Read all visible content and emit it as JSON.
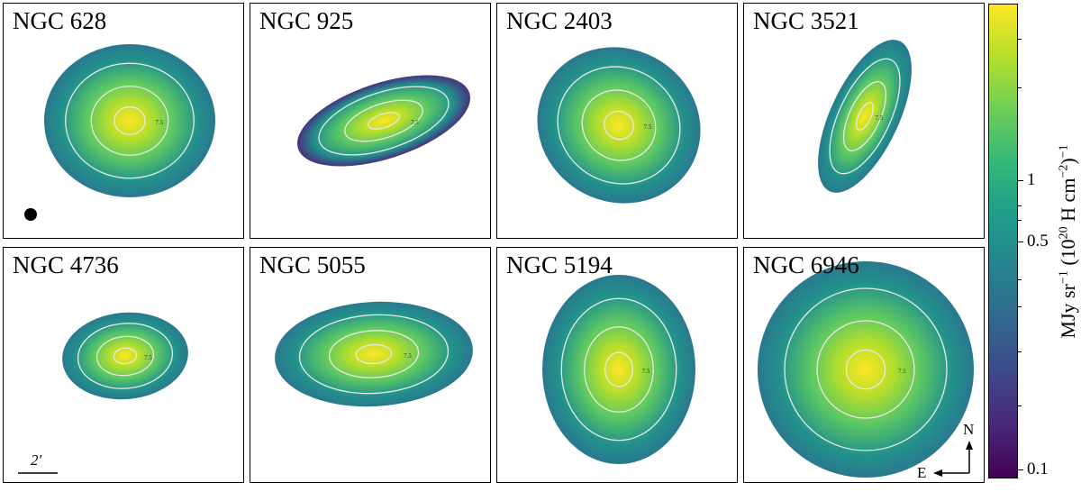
{
  "chart_data": {
    "type": "heatmap",
    "panels": [
      {
        "title": "NGC 628"
      },
      {
        "title": "NGC 925"
      },
      {
        "title": "NGC 2403"
      },
      {
        "title": "NGC 3521"
      },
      {
        "title": "NGC 4736"
      },
      {
        "title": "NGC 5055"
      },
      {
        "title": "NGC 5194"
      },
      {
        "title": "NGC 6946"
      }
    ],
    "colormap": "viridis",
    "colorbar": {
      "label": {
        "unit1": "MJy sr",
        "exp1": "−1",
        "open": " (10",
        "exp2": "20",
        "unit2": " H cm",
        "exp3": "−2",
        "close": ")",
        "exp4": "−1"
      },
      "ticks": [
        "1",
        "0.5",
        "0.1"
      ]
    },
    "contour_label": "7.5",
    "scale_bar": "2′",
    "compass": {
      "north": "N",
      "east": "E"
    }
  }
}
